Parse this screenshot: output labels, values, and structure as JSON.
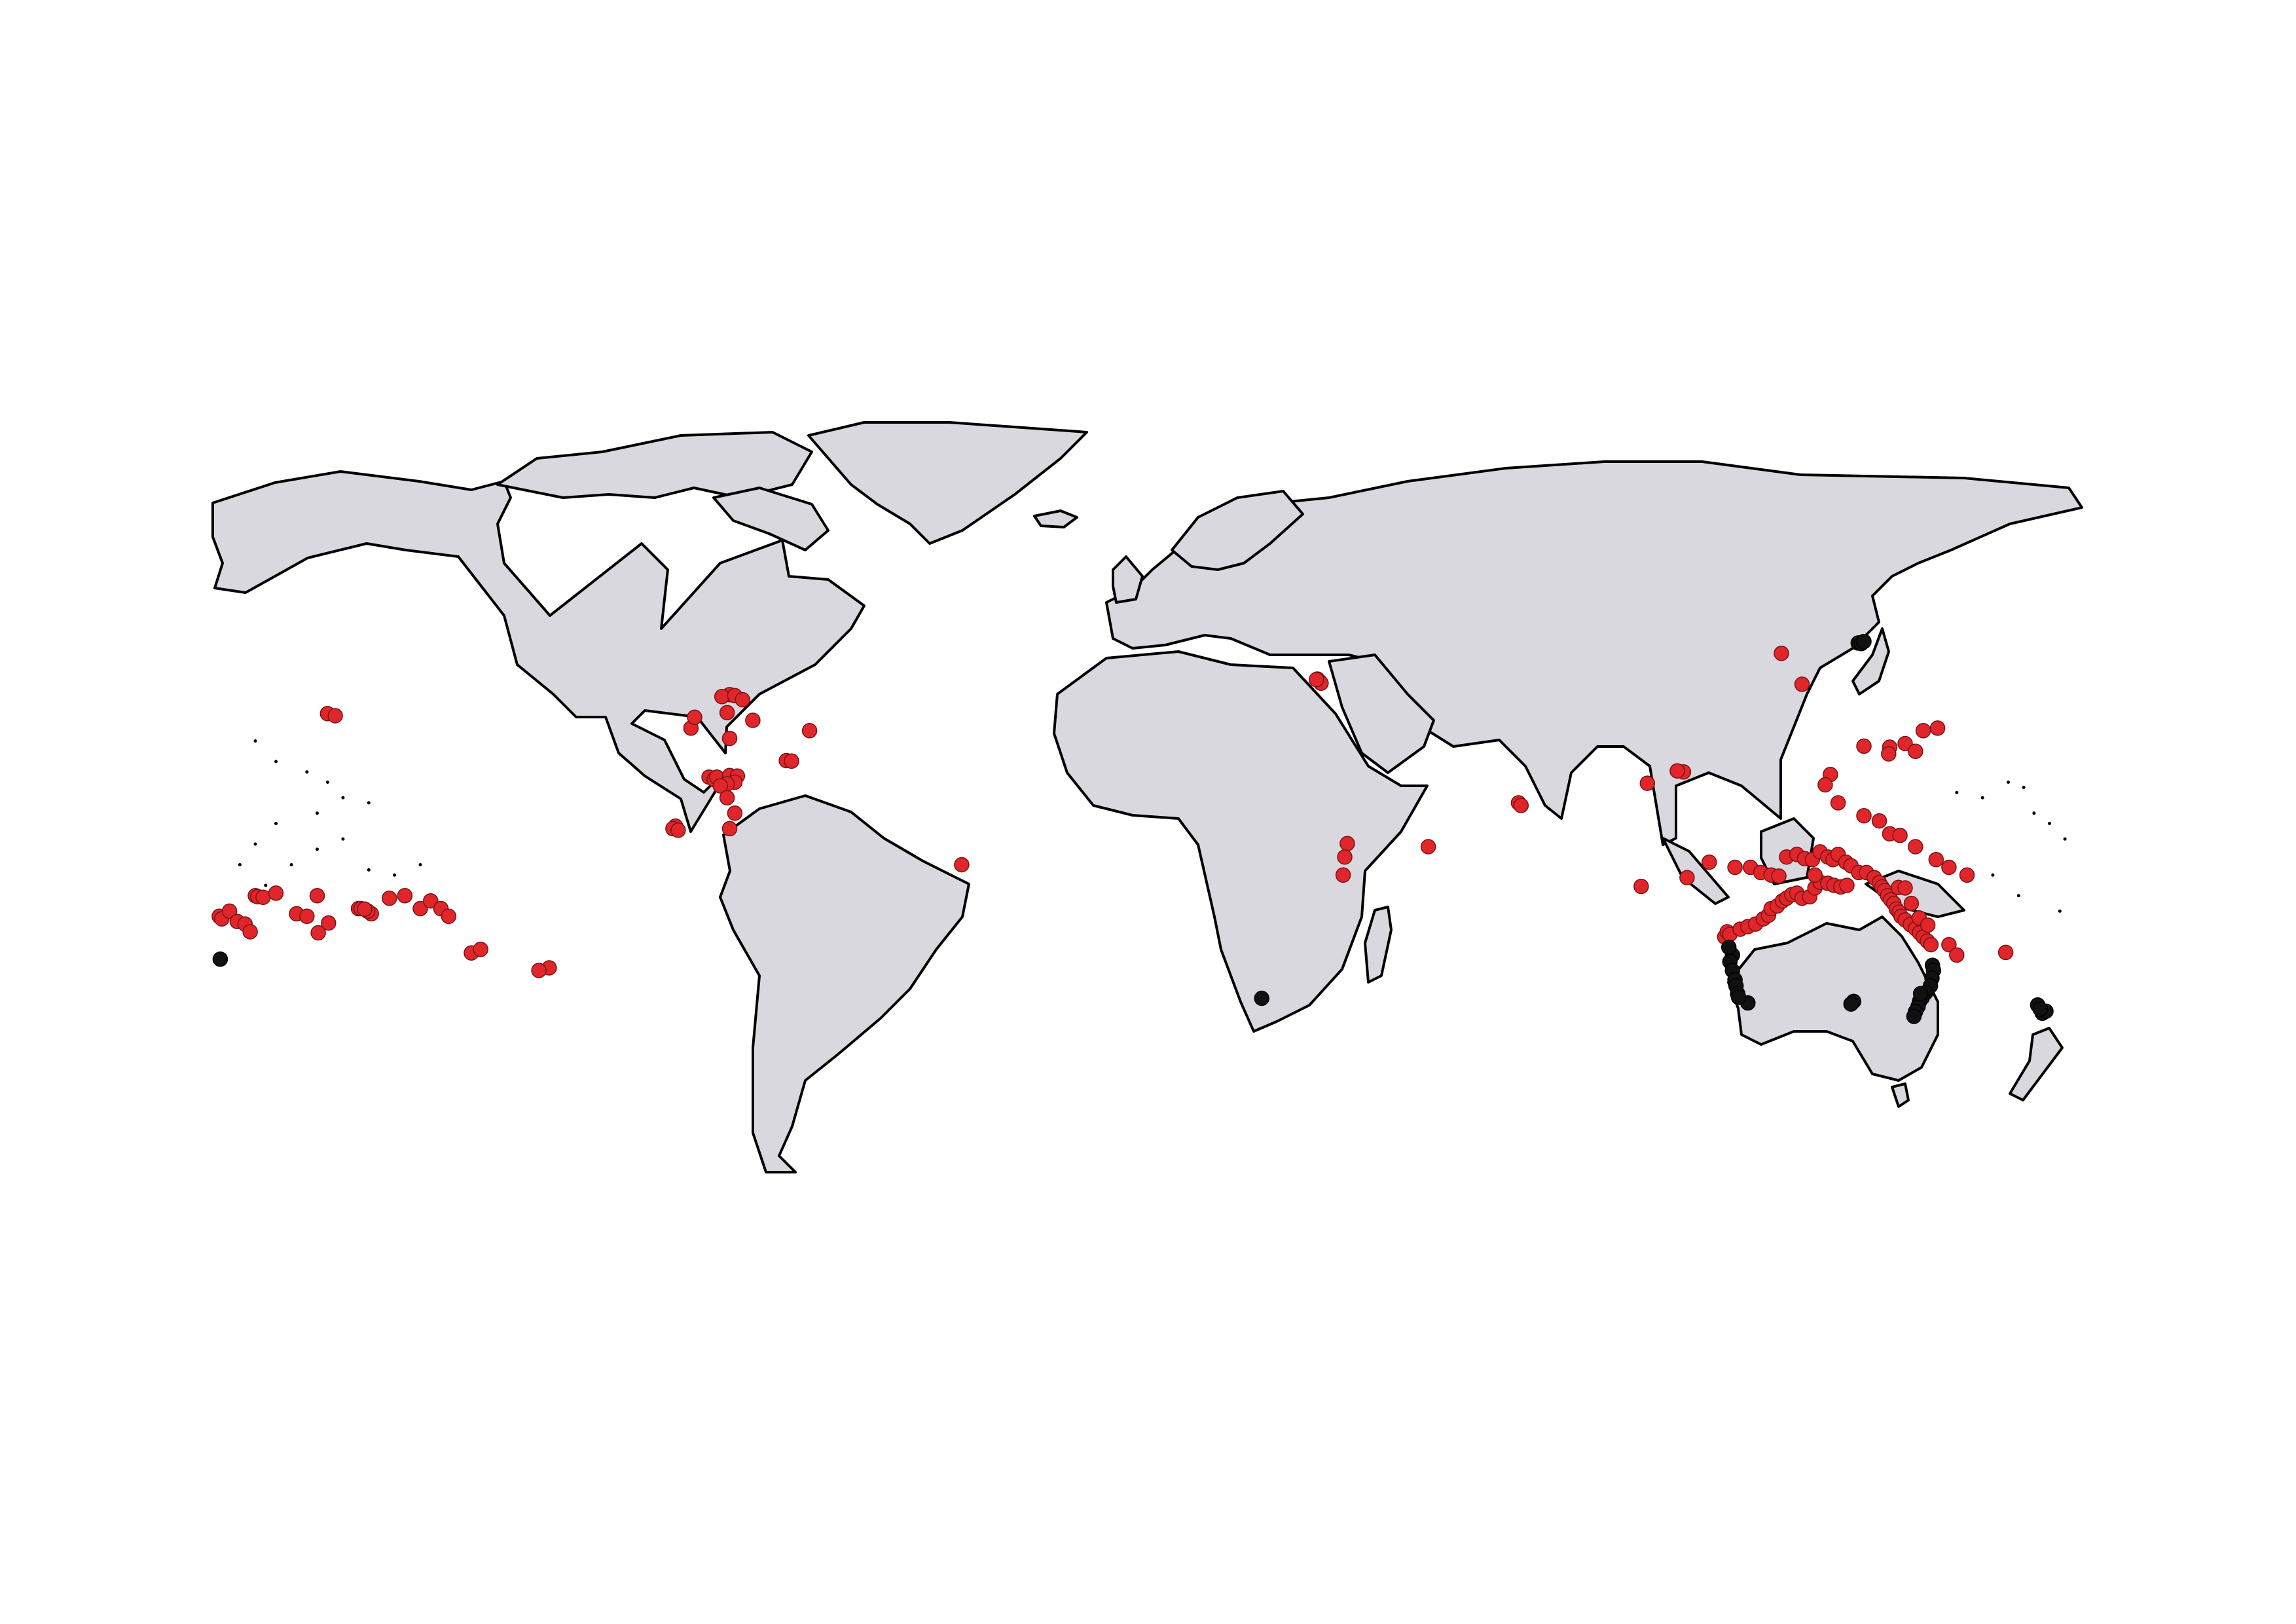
{
  "map": {
    "projection": "equirectangular",
    "extent": {
      "lon": [
        -180,
        180
      ],
      "lat": [
        -90,
        90
      ]
    },
    "colors": {
      "land": "#dad8df",
      "coastline": "#000000",
      "background": "#ffffff"
    }
  },
  "legend": null,
  "groups": [
    {
      "id": "red",
      "color": "#e0262b",
      "stroke": "#7a1214"
    },
    {
      "id": "black",
      "color": "#111111",
      "stroke": "#000000"
    }
  ],
  "occurrences": {
    "red": [
      [
        -158.0,
        21.3
      ],
      [
        -156.5,
        20.9
      ],
      [
        -149.5,
        -17.5
      ],
      [
        -150.2,
        -17.0
      ],
      [
        -152.0,
        -16.5
      ],
      [
        -151.5,
        -16.5
      ],
      [
        -150.8,
        -16.6
      ],
      [
        -179.0,
        -18.0
      ],
      [
        -178.5,
        -18.5
      ],
      [
        -177.0,
        -17.0
      ],
      [
        -175.5,
        -19.0
      ],
      [
        -174.0,
        -19.5
      ],
      [
        -173.0,
        -21.0
      ],
      [
        -172.0,
        -14.0
      ],
      [
        -171.5,
        -14.2
      ],
      [
        -170.5,
        -14.3
      ],
      [
        -168.0,
        -13.5
      ],
      [
        -164.0,
        -17.5
      ],
      [
        -160.0,
        -14.0
      ],
      [
        -162.0,
        -18.0
      ],
      [
        -159.8,
        -21.2
      ],
      [
        -157.8,
        -19.3
      ],
      [
        -146.0,
        -14.5
      ],
      [
        -143.0,
        -14.0
      ],
      [
        -140.0,
        -16.5
      ],
      [
        -138.0,
        -15.0
      ],
      [
        -136.0,
        -16.5
      ],
      [
        -134.5,
        -18.0
      ],
      [
        -130.1,
        -25.1
      ],
      [
        -128.3,
        -24.4
      ],
      [
        -115.0,
        -28.0
      ],
      [
        -117.0,
        -28.5
      ],
      [
        -84.0,
        9.0
      ],
      [
        -83.0,
        8.5
      ],
      [
        -82.5,
        9.0
      ],
      [
        -81.0,
        7.5
      ],
      [
        -79.5,
        8.5
      ],
      [
        -80.0,
        9.3
      ],
      [
        -78.5,
        9.2
      ],
      [
        -79.0,
        8.0
      ],
      [
        -80.5,
        7.7
      ],
      [
        -81.8,
        7.3
      ],
      [
        -87.5,
        18.5
      ],
      [
        -86.8,
        20.6
      ],
      [
        -80.0,
        25.0
      ],
      [
        -81.5,
        24.6
      ],
      [
        -79.0,
        24.8
      ],
      [
        -77.5,
        24.0
      ],
      [
        -75.5,
        20.0
      ],
      [
        -80.5,
        21.5
      ],
      [
        -80.0,
        16.5
      ],
      [
        -64.5,
        18.0
      ],
      [
        -69.0,
        12.2
      ],
      [
        -68.0,
        12.1
      ],
      [
        -90.5,
        -0.5
      ],
      [
        -91.0,
        -1.0
      ],
      [
        -90.0,
        -1.3
      ],
      [
        -80.5,
        5.0
      ],
      [
        -79.0,
        2.0
      ],
      [
        -80.0,
        -1.0
      ],
      [
        -35.0,
        -8.0
      ],
      [
        34.5,
        27.5
      ],
      [
        34.0,
        28.0
      ],
      [
        34.7,
        27.2
      ],
      [
        33.8,
        27.9
      ],
      [
        39.8,
        -3.9
      ],
      [
        39.3,
        -6.5
      ],
      [
        39.0,
        -10.0
      ],
      [
        55.5,
        -4.5
      ],
      [
        73.0,
        4.0
      ],
      [
        73.5,
        3.5
      ],
      [
        98.0,
        7.8
      ],
      [
        105.0,
        10.0
      ],
      [
        103.8,
        10.2
      ],
      [
        124.0,
        33.0
      ],
      [
        128.0,
        27.0
      ],
      [
        140.0,
        15.0
      ],
      [
        145.0,
        14.8
      ],
      [
        144.8,
        13.5
      ],
      [
        148.0,
        15.5
      ],
      [
        150.0,
        14.0
      ],
      [
        154.3,
        18.5
      ],
      [
        151.5,
        18.0
      ],
      [
        133.5,
        9.5
      ],
      [
        132.5,
        7.5
      ],
      [
        135.0,
        4.0
      ],
      [
        140.0,
        1.5
      ],
      [
        143.0,
        0.5
      ],
      [
        145.0,
        -2.0
      ],
      [
        147.0,
        -2.3
      ],
      [
        150.0,
        -4.5
      ],
      [
        154.0,
        -7.0
      ],
      [
        156.5,
        -8.5
      ],
      [
        160.0,
        -10.0
      ],
      [
        110.0,
        -7.5
      ],
      [
        115.0,
        -8.5
      ],
      [
        118.0,
        -8.5
      ],
      [
        120.0,
        -9.5
      ],
      [
        122.0,
        -10.0
      ],
      [
        123.5,
        -10.2
      ],
      [
        125.0,
        -6.5
      ],
      [
        127.0,
        -6.0
      ],
      [
        128.5,
        -6.8
      ],
      [
        130.0,
        -7.0
      ],
      [
        131.5,
        -5.5
      ],
      [
        133.0,
        -6.5
      ],
      [
        134.0,
        -7.0
      ],
      [
        135.0,
        -6.0
      ],
      [
        136.5,
        -7.5
      ],
      [
        137.5,
        -8.2
      ],
      [
        139.0,
        -9.5
      ],
      [
        140.5,
        -9.5
      ],
      [
        142.0,
        -10.5
      ],
      [
        143.0,
        -11.5
      ],
      [
        143.5,
        -12.3
      ],
      [
        144.0,
        -13.0
      ],
      [
        144.6,
        -14.0
      ],
      [
        145.2,
        -14.8
      ],
      [
        145.8,
        -15.5
      ],
      [
        146.3,
        -16.6
      ],
      [
        146.8,
        -17.2
      ],
      [
        147.2,
        -18.0
      ],
      [
        148.0,
        -18.7
      ],
      [
        149.0,
        -19.6
      ],
      [
        150.0,
        -20.4
      ],
      [
        150.8,
        -21.2
      ],
      [
        151.5,
        -22.0
      ],
      [
        152.3,
        -22.8
      ],
      [
        153.0,
        -23.5
      ],
      [
        146.7,
        -12.4
      ],
      [
        148.0,
        -12.5
      ],
      [
        149.2,
        -15.5
      ],
      [
        150.7,
        -18.3
      ],
      [
        152.4,
        -19.7
      ],
      [
        156.5,
        -23.5
      ],
      [
        158.0,
        -25.5
      ],
      [
        167.5,
        -25.0
      ],
      [
        113.0,
        -22.0
      ],
      [
        113.5,
        -21.0
      ],
      [
        114.0,
        -21.5
      ],
      [
        116.0,
        -20.5
      ],
      [
        117.5,
        -20.0
      ],
      [
        119.0,
        -19.5
      ],
      [
        120.5,
        -18.5
      ],
      [
        121.5,
        -17.8
      ],
      [
        122.0,
        -16.5
      ],
      [
        123.2,
        -16.0
      ],
      [
        124.2,
        -15.0
      ],
      [
        125.0,
        -14.5
      ],
      [
        126.0,
        -13.8
      ],
      [
        127.0,
        -13.5
      ],
      [
        128.0,
        -14.5
      ],
      [
        129.5,
        -14.2
      ],
      [
        130.5,
        -12.5
      ],
      [
        131.5,
        -11.4
      ],
      [
        133.0,
        -11.6
      ],
      [
        134.2,
        -12.0
      ],
      [
        135.5,
        -12.3
      ],
      [
        136.7,
        -12.0
      ],
      [
        130.5,
        -10.0
      ],
      [
        105.7,
        -10.5
      ],
      [
        96.8,
        -12.2
      ]
    ],
    "black": [
      [
        -178.8,
        -26.3
      ],
      [
        23.2,
        -33.9
      ],
      [
        114.5,
        -25.5
      ],
      [
        113.8,
        -24.0
      ],
      [
        114.0,
        -26.8
      ],
      [
        114.5,
        -28.5
      ],
      [
        115.0,
        -30.3
      ],
      [
        115.2,
        -31.5
      ],
      [
        115.5,
        -33.0
      ],
      [
        117.5,
        -34.8
      ],
      [
        115.7,
        -33.7
      ],
      [
        138.0,
        -34.5
      ],
      [
        137.5,
        -35.0
      ],
      [
        153.3,
        -27.5
      ],
      [
        153.5,
        -28.5
      ],
      [
        153.2,
        -30.0
      ],
      [
        152.9,
        -31.5
      ],
      [
        152.0,
        -32.8
      ],
      [
        151.3,
        -33.8
      ],
      [
        150.8,
        -34.5
      ],
      [
        150.5,
        -35.5
      ],
      [
        150.0,
        -36.5
      ],
      [
        149.7,
        -37.4
      ],
      [
        151.0,
        -33.0
      ],
      [
        138.9,
        35.0
      ],
      [
        139.5,
        34.9
      ],
      [
        140.0,
        35.3
      ],
      [
        173.7,
        -35.2
      ],
      [
        174.6,
        -36.8
      ],
      [
        175.3,
        -36.4
      ],
      [
        174.2,
        -36.0
      ]
    ]
  }
}
